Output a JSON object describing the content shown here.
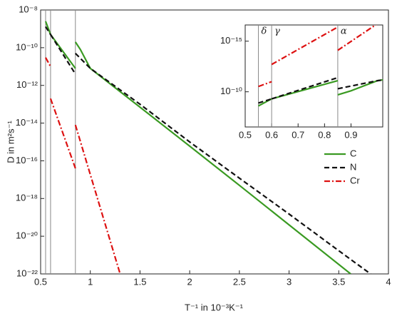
{
  "chart_data": {
    "type": "line",
    "xlabel": "T⁻¹ in 10⁻³K⁻¹",
    "ylabel": "D in m²s⁻¹",
    "xlim": [
      0.5,
      4
    ],
    "xticks": [
      0.5,
      1,
      1.5,
      2,
      2.5,
      3,
      3.5,
      4
    ],
    "ylim": [
      1e-22,
      1e-08
    ],
    "yticks": [
      {
        "value": 1e-22,
        "label": "10⁻²²"
      },
      {
        "value": 1e-20,
        "label": "10⁻²⁰"
      },
      {
        "value": 1e-18,
        "label": "10⁻¹⁸"
      },
      {
        "value": 1e-16,
        "label": "10⁻¹⁶"
      },
      {
        "value": 1e-14,
        "label": "10⁻¹⁴"
      },
      {
        "value": 1e-12,
        "label": "10⁻¹²"
      },
      {
        "value": 1e-10,
        "label": "10⁻¹⁰"
      },
      {
        "value": 1e-08,
        "label": "10⁻⁸"
      }
    ],
    "log_y": true,
    "legend": "right",
    "phase_boundaries": [
      0.55,
      0.6,
      0.85
    ],
    "phase_labels": [
      "δ",
      "γ",
      "α"
    ],
    "series": [
      {
        "name": "C",
        "color": "#3a9a22",
        "dash": "solid",
        "x": [
          0.55,
          0.6,
          null,
          0.6,
          0.85,
          null,
          0.85,
          0.9,
          1.0,
          1.5,
          2.0,
          2.5,
          3.0,
          3.62
        ],
        "values": [
          2.5e-09,
          5e-10,
          null,
          5e-10,
          8e-12,
          null,
          2e-10,
          8e-11,
          8e-12,
          7e-14,
          6e-16,
          5e-18,
          4e-20,
          1e-22
        ]
      },
      {
        "name": "N",
        "color": "#111111",
        "dash": "dashed",
        "x": [
          0.55,
          0.6,
          null,
          0.6,
          0.85,
          null,
          0.85,
          1.0,
          1.5,
          2.0,
          2.5,
          3.0,
          3.5,
          3.82
        ],
        "values": [
          1.3e-09,
          5e-10,
          null,
          5e-10,
          4e-12,
          null,
          5e-11,
          8e-12,
          1e-13,
          1e-15,
          1.2e-17,
          1.5e-19,
          1.7e-21,
          1e-22
        ]
      },
      {
        "name": "Cr",
        "color": "#dd1111",
        "dash": "dashdot",
        "x": [
          0.55,
          0.6,
          null,
          0.6,
          0.85,
          null,
          0.85,
          1.3
        ],
        "values": [
          3e-11,
          1e-11,
          null,
          2e-13,
          4e-17,
          null,
          8e-15,
          1e-22
        ]
      }
    ],
    "inset": {
      "xlim": [
        0.5,
        1.02
      ],
      "xticks": [
        0.5,
        0.6,
        0.7,
        0.8,
        0.9
      ],
      "ylim": [
        3e-07,
        2.5e-17
      ],
      "yticks": [
        {
          "value": 1e-10,
          "label": "10⁻¹⁰"
        },
        {
          "value": 1e-15,
          "label": "10⁻¹⁵"
        }
      ]
    }
  }
}
